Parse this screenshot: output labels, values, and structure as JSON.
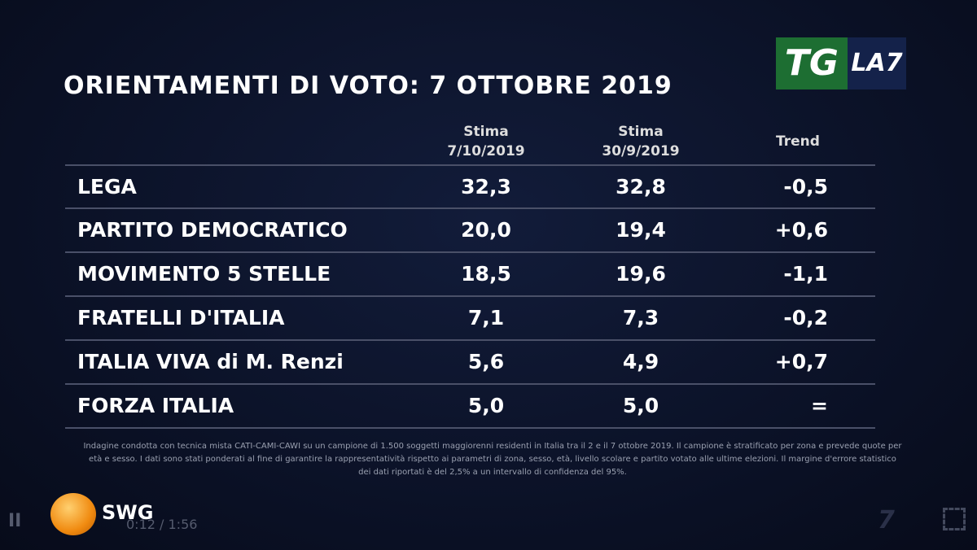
{
  "header": {
    "title": "ORIENTAMENTI DI VOTO: 7 OTTOBRE 2019",
    "logo": {
      "tg": "TG",
      "la7": "LA7"
    }
  },
  "table": {
    "columns": [
      {
        "label": "Stima",
        "date": "7/10/2019"
      },
      {
        "label": "Stima",
        "date": "30/9/2019"
      },
      {
        "label": "Trend"
      }
    ],
    "rows": [
      [
        "LEGA",
        "32,3",
        "32,8",
        "-0,5"
      ],
      [
        "PARTITO DEMOCRATICO",
        "20,0",
        "19,4",
        "+0,6"
      ],
      [
        "MOVIMENTO 5 STELLE",
        "18,5",
        "19,6",
        "-1,1"
      ],
      [
        "FRATELLI D'ITALIA",
        "7,1",
        "7,3",
        "-0,2"
      ],
      [
        "ITALIA VIVA di M. Renzi",
        "5,6",
        "4,9",
        "+0,7"
      ],
      [
        "FORZA ITALIA",
        "5,0",
        "5,0",
        "="
      ]
    ]
  },
  "footnote": "Indagine condotta con tecnica mista CATI-CAMI-CAWI su un campione di 1.500 soggetti maggiorenni residenti in Italia tra il 2 e il 7 ottobre 2019. Il campione è stratificato per zona e prevede quote per età e sesso. I dati sono stati ponderati al fine di garantire la rappresentatività rispetto ai parametri di zona, sesso, età, livello scolare e partito votato alle ultime elezioni. Il margine d'errore statistico dei dati riportati è del 2,5% a un intervallo di confidenza del 95%.",
  "source": "SWG",
  "player": {
    "time": "0:12 / 1:56"
  }
}
